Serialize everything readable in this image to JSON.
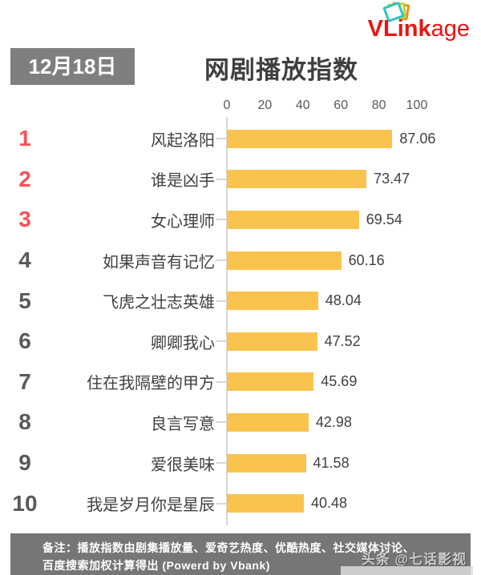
{
  "logo": {
    "text_bold": "VLink",
    "text_light": "age",
    "icon": "stacked-photo-frames-icon",
    "brand_color": "#E8150F"
  },
  "header": {
    "date_badge": "12月18日",
    "title": "网剧播放指数"
  },
  "chart_data": {
    "type": "bar",
    "orientation": "horizontal",
    "title": "网剧播放指数",
    "date": "12月18日",
    "xlim": [
      0,
      100
    ],
    "axis_ticks": [
      0,
      20,
      40,
      60,
      80,
      100
    ],
    "grid": false,
    "legend": false,
    "bar_color": "#F9C34D",
    "rank_color_top3": "#FA5156",
    "rank_color_rest": "#595959",
    "ranks": [
      1,
      2,
      3,
      4,
      5,
      6,
      7,
      8,
      9,
      10
    ],
    "categories": [
      "风起洛阳",
      "谁是凶手",
      "女心理师",
      "如果声音有记忆",
      "飞虎之壮志英雄",
      "卿卿我心",
      "住在我隔壁的甲方",
      "良言写意",
      "爱很美味",
      "我是岁月你是星辰"
    ],
    "values": [
      87.06,
      73.47,
      69.54,
      60.16,
      48.04,
      47.52,
      45.69,
      42.98,
      41.58,
      40.48
    ]
  },
  "footer": {
    "note_line1": "备注：播放指数由剧集播放量、爱奇艺热度、优酷热度、社交媒体讨论、",
    "note_line2": "百度搜索加权计算得出  (Powerd by Vbank)",
    "watermark": "头条 @七话影视"
  }
}
